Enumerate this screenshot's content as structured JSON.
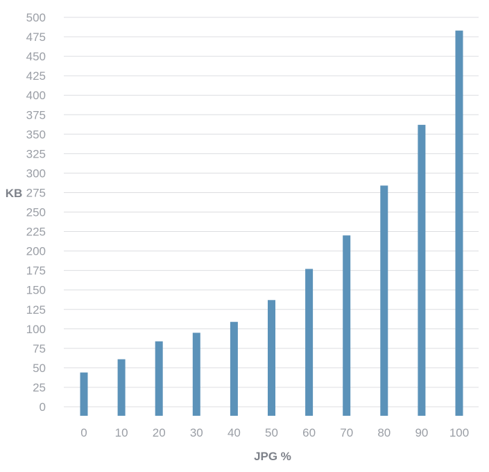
{
  "chart_data": {
    "type": "bar",
    "categories": [
      "0",
      "10",
      "20",
      "30",
      "40",
      "50",
      "60",
      "70",
      "80",
      "90",
      "100"
    ],
    "series": [
      {
        "values": [
          44,
          61,
          84,
          95,
          109,
          137,
          177,
          220,
          284,
          362,
          483
        ]
      }
    ],
    "xlabel": "JPG %",
    "ylabel": "KB",
    "ylim": [
      0,
      500
    ],
    "yticks": [
      0,
      25,
      50,
      75,
      100,
      125,
      150,
      175,
      200,
      225,
      250,
      275,
      300,
      325,
      350,
      375,
      400,
      425,
      450,
      475,
      500
    ],
    "grid": true,
    "legend": "none",
    "bar_color": "#5b92b9"
  }
}
